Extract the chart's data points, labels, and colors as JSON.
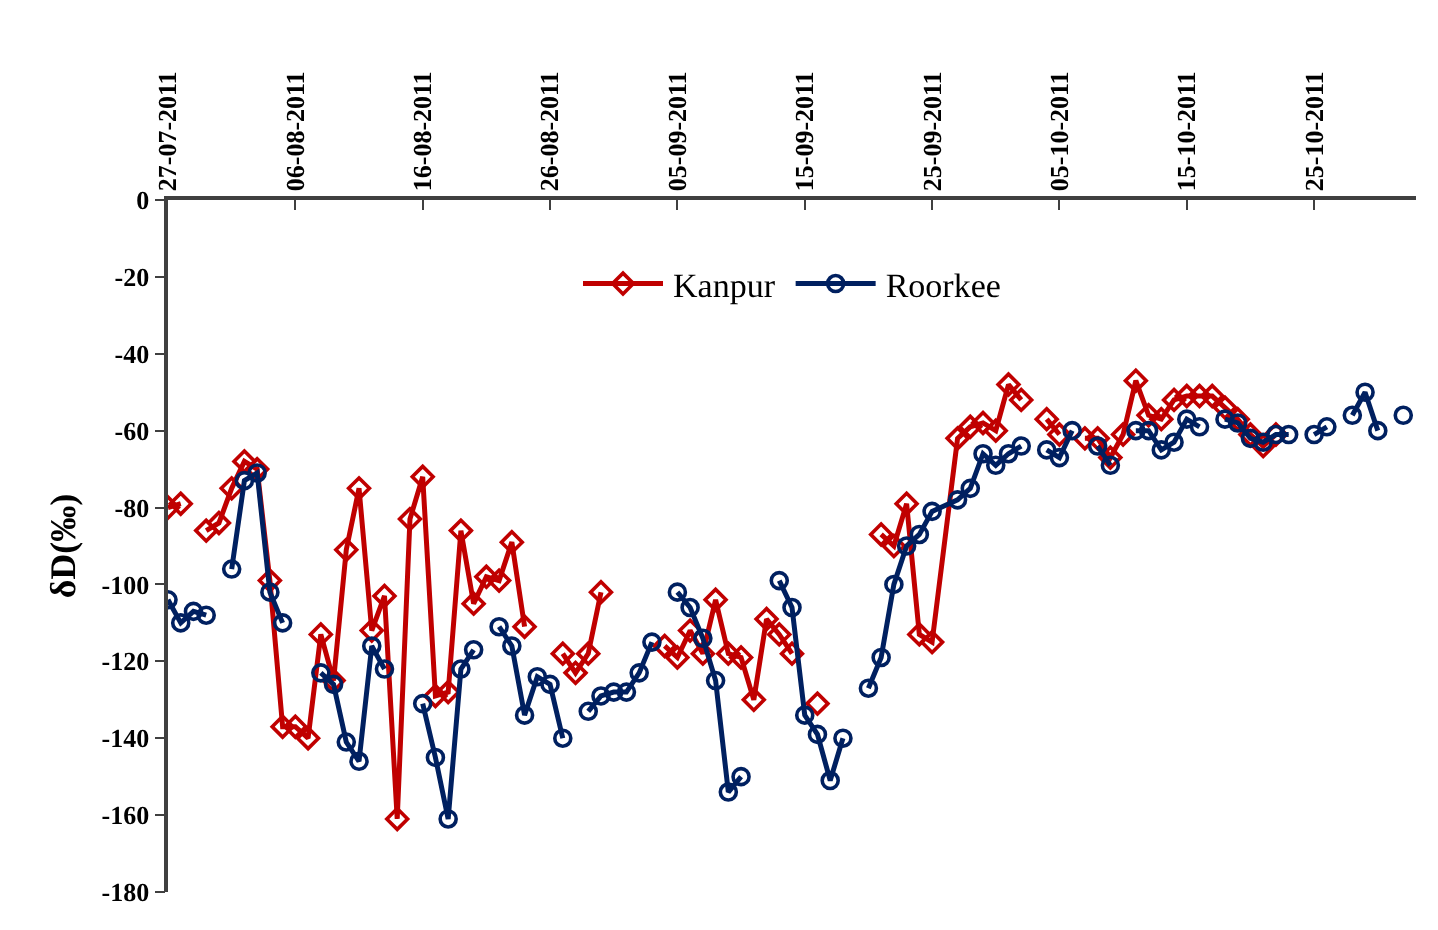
{
  "chart_data": {
    "type": "line",
    "ylabel": "δD(‰)",
    "xlim": [
      "2011-07-27",
      "2011-11-02"
    ],
    "xticks": [
      {
        "value": "2011-07-27",
        "label": "27-07-2011"
      },
      {
        "value": "2011-08-06",
        "label": "06-08-2011"
      },
      {
        "value": "2011-08-16",
        "label": "16-08-2011"
      },
      {
        "value": "2011-08-26",
        "label": "26-08-2011"
      },
      {
        "value": "2011-09-05",
        "label": "05-09-2011"
      },
      {
        "value": "2011-09-15",
        "label": "15-09-2011"
      },
      {
        "value": "2011-09-25",
        "label": "25-09-2011"
      },
      {
        "value": "2011-10-05",
        "label": "05-10-2011"
      },
      {
        "value": "2011-10-15",
        "label": "15-10-2011"
      },
      {
        "value": "2011-10-25",
        "label": "25-10-2011"
      }
    ],
    "ylim": [
      -180,
      0
    ],
    "yticks": [
      0,
      -20,
      -40,
      -60,
      -80,
      -100,
      -120,
      -140,
      -160,
      -180
    ],
    "legend": "top",
    "line_style": "solid",
    "series": [
      {
        "name": "Kanpur",
        "color": "#c00000",
        "marker": "diamond",
        "x": [
          "2011-07-27",
          "2011-07-28",
          "2011-07-29",
          "2011-07-30",
          "2011-07-31",
          "2011-08-01",
          "2011-08-02",
          "2011-08-03",
          "2011-08-04",
          "2011-08-05",
          "2011-08-06",
          "2011-08-07",
          "2011-08-08",
          "2011-08-09",
          "2011-08-10",
          "2011-08-11",
          "2011-08-12",
          "2011-08-13",
          "2011-08-14",
          "2011-08-15",
          "2011-08-16",
          "2011-08-17",
          "2011-08-18",
          "2011-08-19",
          "2011-08-20",
          "2011-08-21",
          "2011-08-22",
          "2011-08-23",
          "2011-08-24",
          "2011-08-26",
          "2011-08-27",
          "2011-08-28",
          "2011-08-29",
          "2011-08-30",
          "2011-09-01",
          "2011-09-04",
          "2011-09-05",
          "2011-09-06",
          "2011-09-07",
          "2011-09-08",
          "2011-09-09",
          "2011-09-10",
          "2011-09-11",
          "2011-09-12",
          "2011-09-13",
          "2011-09-14",
          "2011-09-15",
          "2011-09-16",
          "2011-09-18",
          "2011-09-21",
          "2011-09-22",
          "2011-09-23",
          "2011-09-24",
          "2011-09-25",
          "2011-09-27",
          "2011-09-28",
          "2011-09-29",
          "2011-09-30",
          "2011-10-01",
          "2011-10-02",
          "2011-10-03",
          "2011-10-04",
          "2011-10-05",
          "2011-10-06",
          "2011-10-07",
          "2011-10-08",
          "2011-10-09",
          "2011-10-10",
          "2011-10-11",
          "2011-10-12",
          "2011-10-13",
          "2011-10-14",
          "2011-10-15",
          "2011-10-16",
          "2011-10-17",
          "2011-10-18",
          "2011-10-19",
          "2011-10-20",
          "2011-10-21",
          "2011-10-22"
        ],
        "values": [
          -80,
          -79,
          null,
          -86,
          -84,
          -75,
          -68,
          -70,
          -99,
          -137,
          -137,
          -140,
          -113,
          -125,
          -91,
          -75,
          -112,
          -103,
          -161,
          -83,
          -72,
          -129,
          -128,
          -86,
          -105,
          -98,
          -99,
          -89,
          -111,
          null,
          -118,
          -123,
          -118,
          -102,
          null,
          -116,
          -119,
          -112,
          -118,
          -104,
          -118,
          -119,
          -130,
          -109,
          -113,
          -118,
          null,
          -131,
          null,
          -87,
          -90,
          -79,
          -113,
          -115,
          -62,
          -59,
          -58,
          -60,
          -48,
          -52,
          null,
          -57,
          -61,
          null,
          -62,
          -62,
          -67,
          -61,
          -47,
          -56,
          -57,
          -52,
          -51,
          -51,
          -51,
          -54,
          -57,
          -61,
          -64,
          -61
        ]
      },
      {
        "name": "Roorkee",
        "color": "#002060",
        "marker": "circle",
        "x": [
          "2011-07-27",
          "2011-07-28",
          "2011-07-29",
          "2011-07-30",
          "2011-07-31",
          "2011-08-01",
          "2011-08-02",
          "2011-08-03",
          "2011-08-04",
          "2011-08-05",
          "2011-08-06",
          "2011-08-08",
          "2011-08-09",
          "2011-08-10",
          "2011-08-11",
          "2011-08-12",
          "2011-08-13",
          "2011-08-14",
          "2011-08-16",
          "2011-08-17",
          "2011-08-18",
          "2011-08-19",
          "2011-08-20",
          "2011-08-21",
          "2011-08-22",
          "2011-08-23",
          "2011-08-24",
          "2011-08-25",
          "2011-08-26",
          "2011-08-27",
          "2011-08-28",
          "2011-08-29",
          "2011-08-30",
          "2011-08-31",
          "2011-09-01",
          "2011-09-02",
          "2011-09-03",
          "2011-09-04",
          "2011-09-05",
          "2011-09-06",
          "2011-09-07",
          "2011-09-08",
          "2011-09-09",
          "2011-09-10",
          "2011-09-11",
          "2011-09-13",
          "2011-09-14",
          "2011-09-15",
          "2011-09-16",
          "2011-09-17",
          "2011-09-18",
          "2011-09-19",
          "2011-09-20",
          "2011-09-21",
          "2011-09-22",
          "2011-09-23",
          "2011-09-24",
          "2011-09-25",
          "2011-09-27",
          "2011-09-28",
          "2011-09-29",
          "2011-09-30",
          "2011-10-01",
          "2011-10-02",
          "2011-10-03",
          "2011-10-04",
          "2011-10-05",
          "2011-10-06",
          "2011-10-07",
          "2011-10-08",
          "2011-10-09",
          "2011-10-10",
          "2011-10-11",
          "2011-10-12",
          "2011-10-13",
          "2011-10-14",
          "2011-10-15",
          "2011-10-16",
          "2011-10-17",
          "2011-10-18",
          "2011-10-19",
          "2011-10-20",
          "2011-10-21",
          "2011-10-22",
          "2011-10-23",
          "2011-10-24",
          "2011-10-25",
          "2011-10-26",
          "2011-10-27",
          "2011-10-28",
          "2011-10-29",
          "2011-10-30",
          "2011-10-31",
          "2011-11-01"
        ],
        "values": [
          -104,
          -110,
          -107,
          -108,
          null,
          -96,
          -73,
          -71,
          -102,
          -110,
          null,
          -123,
          -126,
          -141,
          -146,
          -116,
          -122,
          null,
          -131,
          -145,
          -161,
          -122,
          -117,
          null,
          -111,
          -116,
          -134,
          -124,
          -126,
          -140,
          null,
          -133,
          -129,
          -128,
          -128,
          -123,
          -115,
          null,
          -102,
          -106,
          -114,
          -125,
          -154,
          -150,
          null,
          -99,
          -106,
          -134,
          -139,
          -151,
          -140,
          null,
          -127,
          -119,
          -100,
          -90,
          -87,
          -81,
          -78,
          -75,
          -66,
          -69,
          -66,
          -64,
          null,
          -65,
          -67,
          -60,
          null,
          -64,
          -69,
          null,
          -60,
          -60,
          -65,
          -63,
          -57,
          -59,
          null,
          -57,
          -58,
          -62,
          -63,
          -61,
          -61,
          null,
          -61,
          -59,
          null,
          -56,
          -50,
          -60,
          null,
          -56
        ]
      }
    ]
  }
}
